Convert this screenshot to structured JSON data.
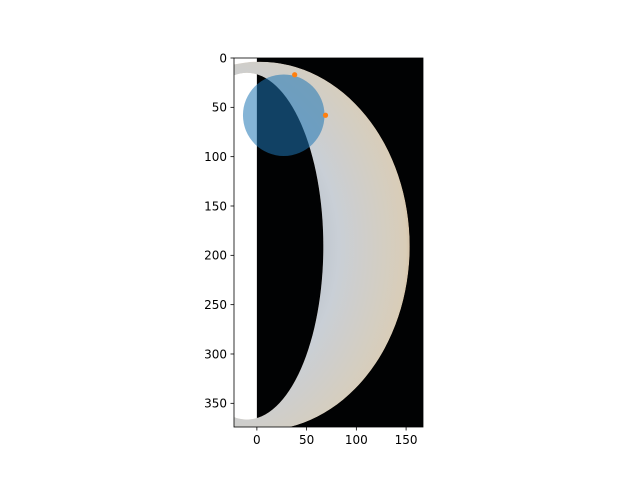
{
  "chart_data": {
    "type": "scatter",
    "title": "",
    "xlabel": "",
    "ylabel": "",
    "xlim": [
      -23,
      167
    ],
    "ylim": [
      374,
      0
    ],
    "xticks": [
      0,
      50,
      100,
      150
    ],
    "yticks": [
      0,
      50,
      100,
      150,
      200,
      250,
      300,
      350
    ],
    "grid": false,
    "image": {
      "subject": "crescent planet photograph",
      "extent_x": [
        0,
        167
      ],
      "extent_y": [
        0,
        374
      ],
      "background_color": "#010203",
      "crescent_color": "#c9cfd6",
      "edge_color": "#b87a3c"
    },
    "circle": {
      "cx": 27,
      "cy": 58,
      "r": 41,
      "color": "#1f77b4",
      "alpha": 0.55
    },
    "points": {
      "color": "#ff7f0e",
      "x": [
        38,
        69
      ],
      "y": [
        17,
        58
      ]
    }
  }
}
